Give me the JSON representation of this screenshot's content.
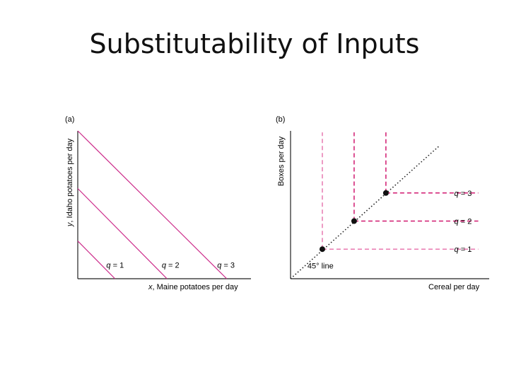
{
  "slide": {
    "title": "Substitutability of Inputs"
  },
  "colors": {
    "curve": "#cc2a8a",
    "dashed_light": "#e879b0",
    "dashed_dark": "#d0186f",
    "axis": "#222222",
    "diagonal": "#222222"
  },
  "chart_data": [
    {
      "type": "line",
      "panel_label": "(a)",
      "xlabel_var": "x",
      "xlabel_rest": ", Maine potatoes per day",
      "ylabel_var": "y",
      "ylabel_rest": ", Idaho potatoes per day",
      "xlim": [
        0,
        100
      ],
      "ylim": [
        0,
        100
      ],
      "series": [
        {
          "name": "q = 1",
          "points": [
            [
              0,
              25.5
            ],
            [
              21.5,
              0
            ]
          ]
        },
        {
          "name": "q = 2",
          "points": [
            [
              0,
              61
            ],
            [
              51.5,
              0
            ]
          ]
        },
        {
          "name": "q = 3",
          "points": [
            [
              0,
              100
            ],
            [
              86,
              0
            ]
          ]
        }
      ],
      "labels": [
        {
          "var": "q",
          "text": " = 1",
          "x": 16.5,
          "y": 7.5
        },
        {
          "var": "q",
          "text": " = 2",
          "x": 48.5,
          "y": 7.5
        },
        {
          "var": "q",
          "text": " = 3",
          "x": 80.5,
          "y": 7.5
        }
      ]
    },
    {
      "type": "line",
      "panel_label": "(b)",
      "xlabel": "Cereal per day",
      "ylabel": "Boxes per day",
      "xlim": [
        0,
        100
      ],
      "ylim": [
        0,
        100
      ],
      "diagonal": {
        "label": "45° line",
        "from": [
          0,
          0
        ],
        "to": [
          75,
          90
        ]
      },
      "series": [
        {
          "name": "q = 1",
          "corner": [
            16,
            20
          ],
          "color_key": "dashed_light"
        },
        {
          "name": "q = 2",
          "corner": [
            32,
            39
          ],
          "color_key": "dashed_dark"
        },
        {
          "name": "q = 3",
          "corner": [
            48,
            58
          ],
          "color_key": "dashed_dark"
        }
      ],
      "labels": [
        {
          "var": "q",
          "text": " = 1"
        },
        {
          "var": "q",
          "text": " = 2"
        },
        {
          "var": "q",
          "text": " = 3"
        }
      ]
    }
  ]
}
